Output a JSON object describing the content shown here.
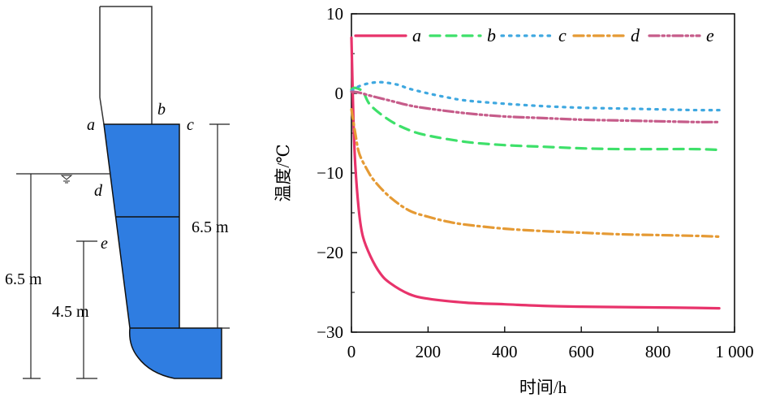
{
  "diagram": {
    "point_labels": [
      "a",
      "b",
      "c",
      "d",
      "e"
    ],
    "dimension_right": "6.5 m",
    "dimension_left_outer": "6.5 m",
    "dimension_left_inner": "4.5 m",
    "fill_color": "#2f7de1"
  },
  "chart_data": {
    "type": "line",
    "title": "",
    "xlabel": "时间/h",
    "ylabel": "温度/℃",
    "xlim": [
      0,
      1000
    ],
    "ylim": [
      -30,
      10
    ],
    "xticks": [
      0,
      200,
      400,
      600,
      800,
      1000
    ],
    "xtick_labels": [
      "0",
      "200",
      "400",
      "600",
      "800",
      "1 000"
    ],
    "yticks": [
      -30,
      -20,
      -10,
      0,
      10
    ],
    "ytick_labels": [
      "−30",
      "−20",
      "−10",
      "0",
      "10"
    ],
    "grid": false,
    "legend_position": "top",
    "series": [
      {
        "name": "a",
        "color": "#e8336b",
        "dash": "solid",
        "x": [
          0,
          5,
          10,
          20,
          30,
          50,
          75,
          100,
          150,
          200,
          300,
          400,
          500,
          600,
          700,
          800,
          900,
          960
        ],
        "y": [
          7,
          -3,
          -9,
          -15,
          -18,
          -20.5,
          -22.6,
          -23.8,
          -25.2,
          -25.8,
          -26.3,
          -26.5,
          -26.7,
          -26.8,
          -26.85,
          -26.9,
          -26.95,
          -27
        ]
      },
      {
        "name": "b",
        "color": "#3ee06a",
        "dash": "dashed",
        "x": [
          0,
          10,
          30,
          50,
          100,
          150,
          200,
          300,
          400,
          500,
          600,
          700,
          800,
          900,
          960
        ],
        "y": [
          0.5,
          0.7,
          0.2,
          -1.5,
          -3.4,
          -4.6,
          -5.3,
          -6.1,
          -6.5,
          -6.7,
          -6.9,
          -7,
          -7,
          -7,
          -7.1
        ]
      },
      {
        "name": "c",
        "color": "#3fa8e0",
        "dash": "dotted",
        "x": [
          0,
          20,
          50,
          80,
          120,
          150,
          200,
          250,
          300,
          400,
          500,
          600,
          700,
          800,
          900,
          960
        ],
        "y": [
          0.3,
          0.9,
          1.3,
          1.4,
          1.1,
          0.6,
          0,
          -0.5,
          -0.9,
          -1.3,
          -1.6,
          -1.8,
          -1.9,
          -2,
          -2.1,
          -2.1
        ]
      },
      {
        "name": "d",
        "color": "#e59a34",
        "dash": "dashdot",
        "x": [
          0,
          10,
          20,
          40,
          60,
          100,
          150,
          200,
          250,
          300,
          400,
          500,
          600,
          700,
          800,
          900,
          960
        ],
        "y": [
          -2,
          -5,
          -7.5,
          -9.5,
          -11,
          -13,
          -14.7,
          -15.5,
          -16.1,
          -16.5,
          -17,
          -17.3,
          -17.5,
          -17.7,
          -17.8,
          -17.9,
          -18
        ]
      },
      {
        "name": "e",
        "color": "#c65c8a",
        "dash": "dashdotdot",
        "x": [
          0,
          20,
          50,
          100,
          150,
          200,
          300,
          400,
          500,
          600,
          700,
          800,
          900,
          960
        ],
        "y": [
          0.2,
          0.1,
          -0.3,
          -0.9,
          -1.5,
          -1.9,
          -2.5,
          -2.9,
          -3.1,
          -3.3,
          -3.4,
          -3.5,
          -3.6,
          -3.6
        ]
      }
    ]
  }
}
